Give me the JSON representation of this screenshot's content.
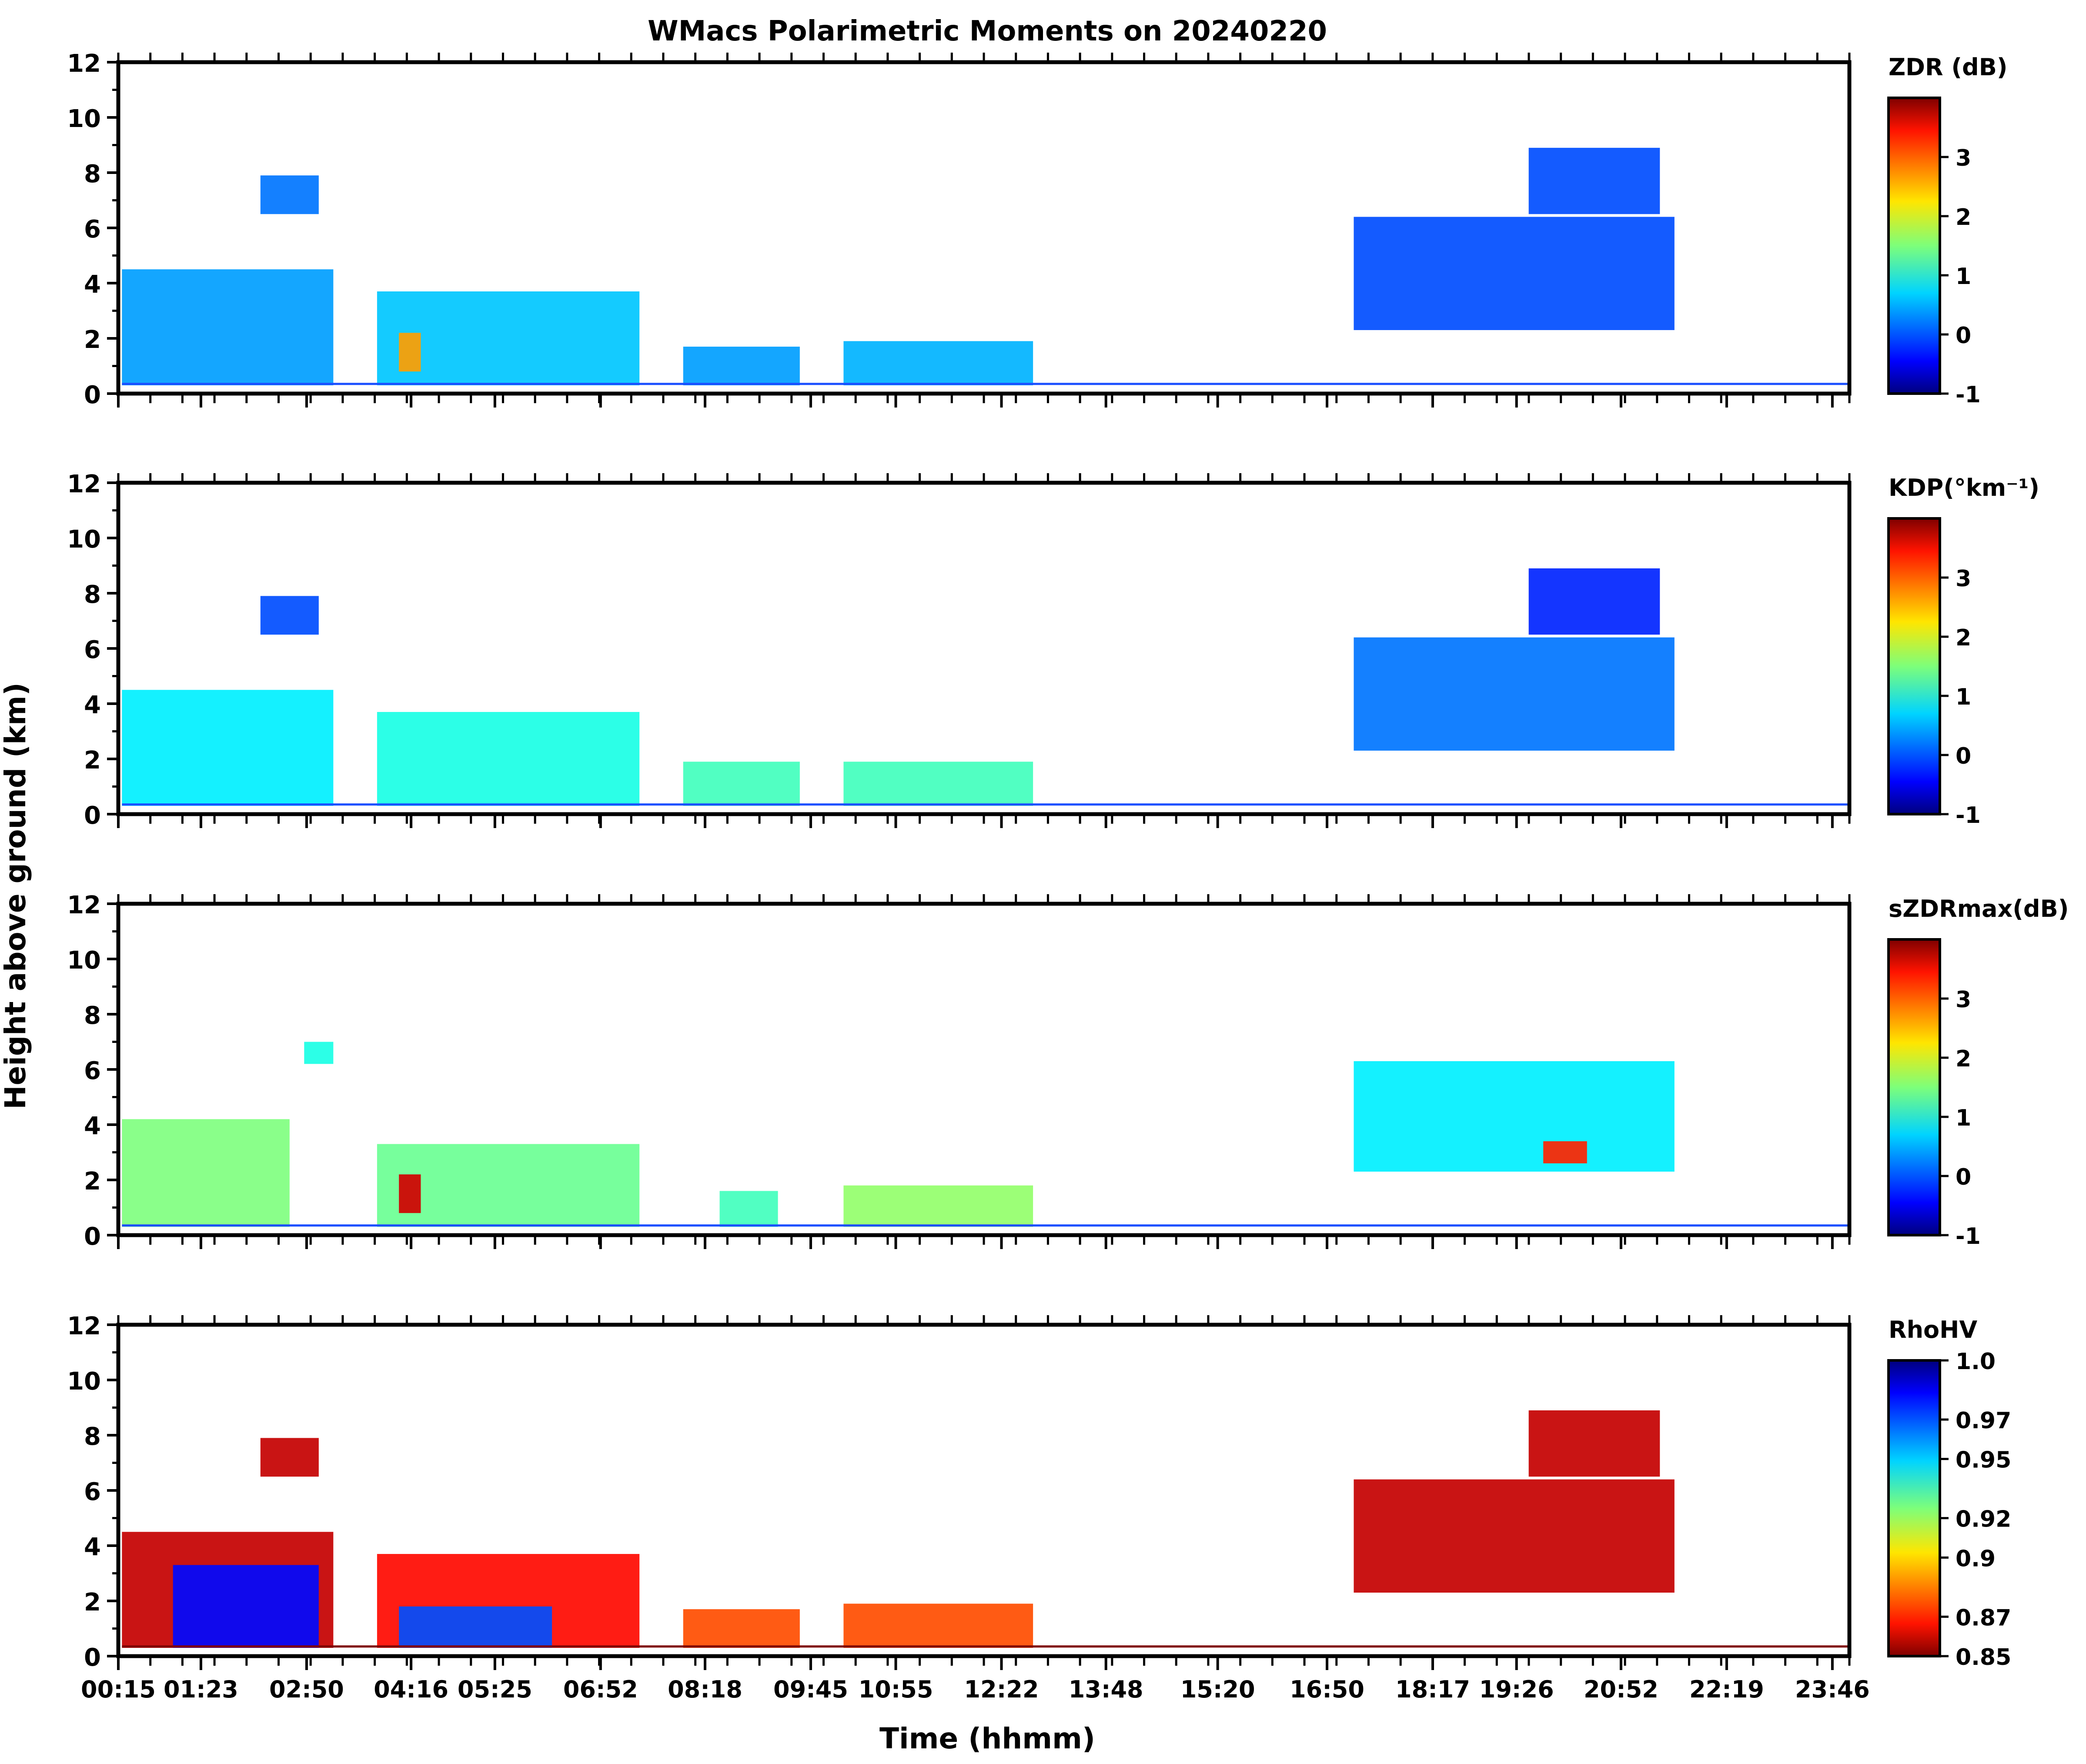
{
  "chart_data": {
    "type": "heatmap",
    "title": "WMacs Polarimetric Moments on 20240220",
    "xlabel": "Time (hhmm)",
    "ylabel": "Height above ground (km)",
    "x_tick_labels": [
      "00:15",
      "01:23",
      "02:50",
      "04:16",
      "05:25",
      "06:52",
      "08:18",
      "09:45",
      "10:55",
      "12:22",
      "13:48",
      "15:20",
      "16:50",
      "18:17",
      "19:26",
      "20:52",
      "22:19",
      "23:46"
    ],
    "ylim": [
      0,
      12
    ],
    "y_ticks": [
      "0",
      "2",
      "4",
      "6",
      "8",
      "10",
      "12"
    ],
    "panels": [
      {
        "name": "ZDR",
        "colorbar_label": "ZDR (dB)",
        "colorbar_range": [
          -1,
          4
        ],
        "colorbar_ticks": [
          "-1",
          "0",
          "1",
          "2",
          "3"
        ],
        "colormap": "jet",
        "echo": [
          {
            "t": [
              0.3,
              3.2
            ],
            "h": [
              0.3,
              4.5
            ],
            "value": 0.4
          },
          {
            "t": [
              2.2,
              3.0
            ],
            "h": [
              6.5,
              7.9
            ],
            "value": 0.2
          },
          {
            "t": [
              3.8,
              7.4
            ],
            "h": [
              0.3,
              3.7
            ],
            "value": 0.6
          },
          {
            "t": [
              4.1,
              4.4
            ],
            "h": [
              0.8,
              2.2
            ],
            "value": 2.6
          },
          {
            "t": [
              8.0,
              9.6
            ],
            "h": [
              0.3,
              1.7
            ],
            "value": 0.4
          },
          {
            "t": [
              10.2,
              12.8
            ],
            "h": [
              0.3,
              1.9
            ],
            "value": 0.5
          },
          {
            "t": [
              17.2,
              21.6
            ],
            "h": [
              2.3,
              6.4
            ],
            "value": 0.0
          },
          {
            "t": [
              19.6,
              21.4
            ],
            "h": [
              6.5,
              8.9
            ],
            "value": 0.0
          }
        ]
      },
      {
        "name": "KDP",
        "colorbar_label": "KDP(°km⁻¹)",
        "colorbar_range": [
          -1,
          4
        ],
        "colorbar_ticks": [
          "-1",
          "0",
          "1",
          "2",
          "3"
        ],
        "colormap": "jet",
        "echo": [
          {
            "t": [
              0.3,
              3.2
            ],
            "h": [
              0.3,
              4.5
            ],
            "value": 0.8
          },
          {
            "t": [
              2.2,
              3.0
            ],
            "h": [
              6.5,
              7.9
            ],
            "value": 0.0
          },
          {
            "t": [
              3.8,
              7.4
            ],
            "h": [
              0.3,
              3.7
            ],
            "value": 1.0
          },
          {
            "t": [
              8.0,
              9.6
            ],
            "h": [
              0.3,
              1.9
            ],
            "value": 1.2
          },
          {
            "t": [
              10.2,
              12.8
            ],
            "h": [
              0.3,
              1.9
            ],
            "value": 1.2
          },
          {
            "t": [
              17.2,
              21.6
            ],
            "h": [
              2.3,
              6.4
            ],
            "value": 0.2
          },
          {
            "t": [
              19.6,
              21.4
            ],
            "h": [
              6.5,
              8.9
            ],
            "value": -0.2
          }
        ]
      },
      {
        "name": "sZDRmax",
        "colorbar_label": "sZDRmax(dB)",
        "colorbar_range": [
          -1,
          4
        ],
        "colorbar_ticks": [
          "-1",
          "0",
          "1",
          "2",
          "3"
        ],
        "colormap": "jet",
        "echo": [
          {
            "t": [
              0.3,
              2.6
            ],
            "h": [
              0.3,
              4.2
            ],
            "value": 1.5
          },
          {
            "t": [
              2.8,
              3.2
            ],
            "h": [
              6.2,
              7.0
            ],
            "value": 1.0
          },
          {
            "t": [
              3.8,
              7.4
            ],
            "h": [
              0.3,
              3.3
            ],
            "value": 1.4
          },
          {
            "t": [
              4.1,
              4.4
            ],
            "h": [
              0.8,
              2.2
            ],
            "value": 3.6
          },
          {
            "t": [
              8.5,
              9.3
            ],
            "h": [
              0.3,
              1.6
            ],
            "value": 1.2
          },
          {
            "t": [
              10.2,
              12.8
            ],
            "h": [
              0.3,
              1.8
            ],
            "value": 1.6
          },
          {
            "t": [
              17.2,
              21.6
            ],
            "h": [
              2.3,
              6.3
            ],
            "value": 0.8
          },
          {
            "t": [
              19.8,
              20.4
            ],
            "h": [
              2.6,
              3.4
            ],
            "value": 3.2
          }
        ]
      },
      {
        "name": "RhoHV",
        "colorbar_label": "RhoHV",
        "colorbar_range": [
          0.85,
          1.0
        ],
        "colorbar_ticks": [
          "0.85",
          "0.87",
          "0.9",
          "0.92",
          "0.95",
          "0.97",
          "1.0"
        ],
        "colormap": "jet_r",
        "echo": [
          {
            "t": [
              0.3,
              3.2
            ],
            "h": [
              0.3,
              4.5
            ],
            "value": 0.86
          },
          {
            "t": [
              1.0,
              3.0
            ],
            "h": [
              0.3,
              3.3
            ],
            "value": 0.98
          },
          {
            "t": [
              2.2,
              3.0
            ],
            "h": [
              6.5,
              7.9
            ],
            "value": 0.86
          },
          {
            "t": [
              3.8,
              7.4
            ],
            "h": [
              0.3,
              3.7
            ],
            "value": 0.87
          },
          {
            "t": [
              4.1,
              6.2
            ],
            "h": [
              0.3,
              1.8
            ],
            "value": 0.97
          },
          {
            "t": [
              8.0,
              9.6
            ],
            "h": [
              0.3,
              1.7
            ],
            "value": 0.88
          },
          {
            "t": [
              10.2,
              12.8
            ],
            "h": [
              0.3,
              1.9
            ],
            "value": 0.88
          },
          {
            "t": [
              17.2,
              21.6
            ],
            "h": [
              2.3,
              6.4
            ],
            "value": 0.86
          },
          {
            "t": [
              19.6,
              21.4
            ],
            "h": [
              6.5,
              8.9
            ],
            "value": 0.86
          }
        ]
      }
    ]
  }
}
